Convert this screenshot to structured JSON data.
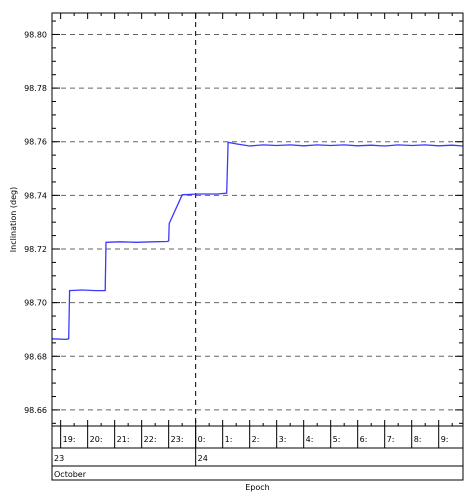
{
  "chart_data": {
    "type": "line",
    "title": "",
    "xlabel": "Epoch",
    "ylabel": "Inclination (deg)",
    "ylim": [
      98.654,
      98.808
    ],
    "xlim": [
      18.68,
      33.9
    ],
    "y_ticks": [
      98.66,
      98.68,
      98.7,
      98.72,
      98.74,
      98.76,
      98.78,
      98.8
    ],
    "y_tick_labels": [
      "98.66",
      "98.68",
      "98.70",
      "98.72",
      "98.74",
      "98.76",
      "98.78",
      "98.80"
    ],
    "hour_ticks": [
      19,
      20,
      21,
      22,
      23,
      24,
      25,
      26,
      27,
      28,
      29,
      30,
      31,
      32,
      33
    ],
    "hour_tick_labels": [
      "19:",
      "20:",
      "21:",
      "22:",
      "23:",
      "0:",
      "1:",
      "2:",
      "3:",
      "4:",
      "5:",
      "6:",
      "7:",
      "8:",
      "9:"
    ],
    "day_labels": [
      {
        "x": 18.68,
        "text": "23"
      },
      {
        "x": 24,
        "text": "24"
      }
    ],
    "month_label": "October",
    "day_divider_x": 24,
    "grid": true,
    "series": [
      {
        "color": "#3a3aff",
        "x": [
          18.68,
          19.2,
          19.3,
          19.33,
          19.8,
          20.3,
          20.65,
          20.68,
          21.2,
          21.8,
          22.4,
          22.94,
          23.0,
          23.02,
          23.5,
          24.1,
          24.8,
          25.0,
          25.15,
          25.2,
          25.5,
          26.0,
          26.5,
          27.0,
          27.5,
          28.0,
          28.5,
          29.0,
          29.5,
          30.0,
          30.5,
          31.0,
          31.5,
          32.0,
          32.5,
          33.0,
          33.5,
          33.9
        ],
        "y": [
          98.6865,
          98.6863,
          98.6865,
          98.7045,
          98.7047,
          98.7045,
          98.7045,
          98.7225,
          98.7227,
          98.7225,
          98.7227,
          98.7228,
          98.723,
          98.7295,
          98.7402,
          98.7405,
          98.7405,
          98.7407,
          98.7408,
          98.7598,
          98.7592,
          98.7584,
          98.7588,
          98.7586,
          98.7588,
          98.7585,
          98.7588,
          98.7586,
          98.7588,
          98.7585,
          98.7587,
          98.7584,
          98.7588,
          98.7586,
          98.7588,
          98.7585,
          98.7587,
          98.7584
        ]
      }
    ]
  }
}
